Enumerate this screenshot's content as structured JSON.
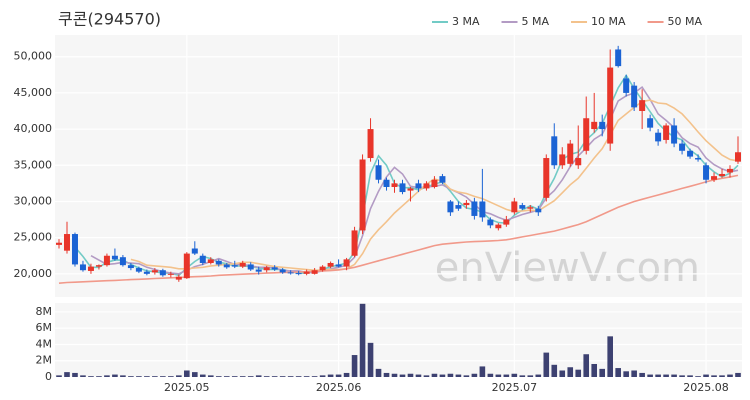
{
  "chart_data": {
    "type": "candlestick",
    "title": "쿠콘(294570)",
    "watermark": "enViewV.com",
    "categories": [
      null,
      null,
      null,
      null,
      null,
      null,
      null,
      null,
      null,
      null,
      null,
      null,
      null,
      null,
      null,
      null,
      "2025.05",
      null,
      null,
      null,
      null,
      null,
      null,
      null,
      null,
      null,
      null,
      null,
      null,
      null,
      null,
      null,
      null,
      null,
      null,
      "2025.06",
      null,
      null,
      null,
      null,
      null,
      null,
      null,
      null,
      null,
      null,
      null,
      null,
      null,
      null,
      null,
      null,
      null,
      null,
      null,
      null,
      null,
      "2025.07",
      null,
      null,
      null,
      null,
      null,
      null,
      null,
      null,
      null,
      null,
      null,
      null,
      null,
      null,
      null,
      null,
      null,
      null,
      null,
      null,
      null,
      null,
      null,
      "2025.08",
      null,
      null,
      null,
      null
    ],
    "open": [
      24000,
      23200,
      25500,
      21300,
      20400,
      21000,
      21200,
      22500,
      22300,
      21200,
      20800,
      20300,
      20200,
      20500,
      19900,
      19200,
      19400,
      23500,
      22500,
      21500,
      21800,
      21300,
      21200,
      21000,
      21300,
      20600,
      20500,
      20900,
      20600,
      20200,
      20100,
      20000,
      20000,
      20500,
      21000,
      21300,
      21000,
      22500,
      26000,
      36000,
      35000,
      33000,
      32000,
      32500,
      31500,
      32500,
      31800,
      32000,
      33500,
      30000,
      29500,
      29500,
      30000,
      30000,
      27500,
      26300,
      26800,
      28500,
      29500,
      29000,
      29000,
      30500,
      39000,
      35000,
      35200,
      35000,
      37000,
      40000,
      41000,
      38000,
      51000,
      47000,
      46000,
      42500,
      41500,
      39500,
      38500,
      40500,
      38000,
      37000,
      36000,
      35000,
      33000,
      33500,
      34000,
      35500
    ],
    "high": [
      24800,
      27200,
      25700,
      21800,
      21400,
      21300,
      22800,
      23500,
      22600,
      21500,
      21000,
      20600,
      20800,
      20700,
      20300,
      19900,
      23000,
      24500,
      22800,
      22300,
      22000,
      21500,
      21800,
      21800,
      21600,
      21000,
      21100,
      21200,
      20800,
      20500,
      20400,
      20600,
      20800,
      21200,
      21700,
      22000,
      22200,
      26500,
      36500,
      41500,
      35800,
      33300,
      33000,
      33000,
      32000,
      33000,
      32800,
      33500,
      33800,
      30200,
      30000,
      30200,
      30500,
      34500,
      27800,
      27000,
      28000,
      30500,
      29800,
      29500,
      29400,
      36500,
      40800,
      37500,
      38500,
      40500,
      44500,
      45000,
      42000,
      51000,
      51500,
      47500,
      46500,
      45500,
      42000,
      40000,
      40800,
      41500,
      38500,
      37300,
      36500,
      35400,
      34000,
      34500,
      35000,
      39000
    ],
    "low": [
      23500,
      22800,
      21000,
      20300,
      20000,
      20600,
      21000,
      21800,
      21000,
      20500,
      20100,
      19800,
      19900,
      19600,
      19500,
      18900,
      19300,
      22600,
      21200,
      21300,
      21000,
      20700,
      20800,
      20800,
      20400,
      19900,
      20200,
      20400,
      20000,
      19900,
      19800,
      19800,
      19900,
      20300,
      20800,
      20900,
      20500,
      22300,
      25500,
      35500,
      32500,
      31500,
      31200,
      31000,
      30000,
      31300,
      31500,
      31800,
      32400,
      28000,
      28700,
      29000,
      27500,
      27200,
      26300,
      26000,
      26500,
      28200,
      28800,
      28500,
      28000,
      30000,
      34500,
      34500,
      34800,
      34500,
      36500,
      39500,
      39000,
      37000,
      48500,
      44500,
      42500,
      40000,
      39700,
      37700,
      38000,
      37500,
      36500,
      35900,
      35500,
      32500,
      32700,
      33300,
      33300,
      35200
    ],
    "close": [
      24300,
      25500,
      21300,
      20500,
      21000,
      21200,
      22500,
      22000,
      21200,
      20800,
      20300,
      20000,
      20500,
      19800,
      20000,
      19600,
      22800,
      22800,
      21500,
      22000,
      21300,
      20900,
      21000,
      21500,
      20600,
      20300,
      20900,
      20600,
      20200,
      20100,
      20000,
      20300,
      20500,
      21000,
      21500,
      21000,
      22000,
      26000,
      35800,
      40000,
      33000,
      32000,
      32500,
      31300,
      31800,
      31800,
      32500,
      33000,
      32600,
      28500,
      29000,
      29800,
      28000,
      27800,
      26700,
      26800,
      27500,
      30000,
      29000,
      29200,
      28500,
      36000,
      35000,
      36500,
      38000,
      36000,
      41500,
      41000,
      40000,
      48500,
      48700,
      45000,
      43000,
      44000,
      40200,
      38300,
      40500,
      38000,
      37000,
      36200,
      35800,
      33000,
      33500,
      33800,
      34500,
      36800
    ],
    "up_color": "#e8352a",
    "down_color": "#1b63d4",
    "ylim": [
      16800,
      53000
    ],
    "yticks": [
      {
        "value": 20000,
        "label": "20,000"
      },
      {
        "value": 25000,
        "label": "25,000"
      },
      {
        "value": 30000,
        "label": "30,000"
      },
      {
        "value": 35000,
        "label": "35,000"
      },
      {
        "value": 40000,
        "label": "40,000"
      },
      {
        "value": 45000,
        "label": "45,000"
      },
      {
        "value": 50000,
        "label": "50,000"
      }
    ],
    "series": [
      {
        "name": "3 MA",
        "color": "#72cbc6",
        "values": [
          null,
          null,
          23700,
          22400,
          20900,
          20900,
          21600,
          21900,
          21900,
          21300,
          20800,
          20400,
          20300,
          20100,
          20100,
          19800,
          20800,
          21700,
          22400,
          22100,
          21600,
          21400,
          21100,
          21100,
          21000,
          20800,
          20600,
          20600,
          20600,
          20300,
          20100,
          20100,
          20300,
          20600,
          21000,
          21200,
          21500,
          23000,
          27900,
          33900,
          36300,
          35000,
          32500,
          31900,
          31900,
          31600,
          32000,
          32400,
          32700,
          31400,
          30000,
          29100,
          28900,
          28500,
          27500,
          27100,
          27000,
          28100,
          28800,
          29400,
          28900,
          31200,
          33200,
          35800,
          36500,
          36800,
          38500,
          39500,
          40800,
          43200,
          45700,
          47400,
          45600,
          44000,
          42400,
          40800,
          39700,
          38900,
          38500,
          37100,
          36300,
          35000,
          34100,
          33400,
          33900,
          35000
        ]
      },
      {
        "name": "5 MA",
        "color": "#b39bc4",
        "values": [
          null,
          null,
          null,
          null,
          22500,
          21900,
          21300,
          21400,
          21600,
          21500,
          21400,
          20900,
          20600,
          20300,
          20100,
          20000,
          20500,
          21000,
          21300,
          21700,
          22100,
          21700,
          21300,
          21300,
          21100,
          20900,
          20900,
          20800,
          20500,
          20400,
          20400,
          20200,
          20200,
          20400,
          20700,
          20900,
          21200,
          22300,
          25300,
          29000,
          31400,
          33400,
          34700,
          33800,
          32100,
          31900,
          32000,
          32100,
          32300,
          31700,
          31200,
          30600,
          29600,
          28600,
          28300,
          27800,
          27400,
          27800,
          28200,
          28500,
          28800,
          30500,
          31500,
          33000,
          34800,
          36300,
          37400,
          38600,
          39300,
          41400,
          43900,
          44600,
          45000,
          45800,
          44100,
          42100,
          41200,
          40200,
          38800,
          38000,
          37500,
          36000,
          35100,
          34500,
          34100,
          34300
        ]
      },
      {
        "name": "10 MA",
        "color": "#f3c28c",
        "values": [
          null,
          null,
          null,
          null,
          null,
          null,
          null,
          null,
          null,
          22000,
          21700,
          21200,
          21100,
          21000,
          20900,
          20700,
          20700,
          20800,
          20900,
          21100,
          21200,
          21300,
          21400,
          21600,
          21600,
          21400,
          21200,
          21000,
          20900,
          20800,
          20700,
          20600,
          20500,
          20500,
          20600,
          20600,
          20700,
          21300,
          22800,
          24800,
          26100,
          27200,
          28400,
          29400,
          30400,
          31400,
          32400,
          33100,
          32800,
          31700,
          31300,
          31100,
          30700,
          30400,
          29900,
          29400,
          28900,
          28600,
          28700,
          28800,
          28700,
          29400,
          30100,
          31200,
          32300,
          33200,
          34600,
          36000,
          37300,
          39200,
          41200,
          42100,
          43000,
          43800,
          44000,
          43600,
          43500,
          42900,
          42100,
          40900,
          39600,
          38400,
          37400,
          36400,
          35800,
          35600
        ]
      },
      {
        "name": "50 MA",
        "color": "#f1998a",
        "values": [
          18700,
          18800,
          18850,
          18900,
          18950,
          19000,
          19050,
          19100,
          19150,
          19200,
          19250,
          19300,
          19350,
          19400,
          19450,
          19500,
          19550,
          19600,
          19650,
          19700,
          19800,
          19850,
          19900,
          19950,
          20000,
          20050,
          20100,
          20150,
          20200,
          20200,
          20250,
          20300,
          20350,
          20400,
          20450,
          20550,
          20700,
          20900,
          21200,
          21500,
          21800,
          22100,
          22400,
          22700,
          23000,
          23300,
          23600,
          23900,
          24100,
          24200,
          24300,
          24400,
          24450,
          24500,
          24550,
          24600,
          24700,
          24900,
          25100,
          25300,
          25500,
          25700,
          25900,
          26200,
          26500,
          26800,
          27200,
          27700,
          28200,
          28700,
          29200,
          29600,
          30000,
          30300,
          30600,
          30900,
          31200,
          31500,
          31800,
          32100,
          32400,
          32700,
          33000,
          33200,
          33400,
          33600
        ]
      }
    ],
    "volume": {
      "color": "#3d4171",
      "values": [
        200000,
        600000,
        500000,
        200000,
        100000,
        100000,
        200000,
        300000,
        200000,
        100000,
        100000,
        100000,
        100000,
        100000,
        100000,
        200000,
        800000,
        600000,
        300000,
        200000,
        100000,
        100000,
        100000,
        100000,
        100000,
        200000,
        100000,
        100000,
        100000,
        100000,
        100000,
        100000,
        100000,
        200000,
        300000,
        300000,
        500000,
        2700000,
        9000000,
        4200000,
        1000000,
        500000,
        400000,
        300000,
        400000,
        300000,
        200000,
        400000,
        300000,
        400000,
        300000,
        200000,
        400000,
        1300000,
        400000,
        300000,
        300000,
        400000,
        200000,
        200000,
        300000,
        3000000,
        1500000,
        800000,
        1200000,
        900000,
        2800000,
        1600000,
        1000000,
        5000000,
        1100000,
        700000,
        800000,
        500000,
        300000,
        300000,
        300000,
        300000,
        200000,
        200000,
        100000,
        300000,
        200000,
        200000,
        300000,
        500000
      ],
      "ylim": [
        0,
        9100000
      ],
      "yticks": [
        {
          "value": 0,
          "label": "0"
        },
        {
          "value": 2000000,
          "label": "2M"
        },
        {
          "value": 4000000,
          "label": "4M"
        },
        {
          "value": 6000000,
          "label": "6M"
        },
        {
          "value": 8000000,
          "label": "8M"
        }
      ]
    },
    "grid": true
  }
}
